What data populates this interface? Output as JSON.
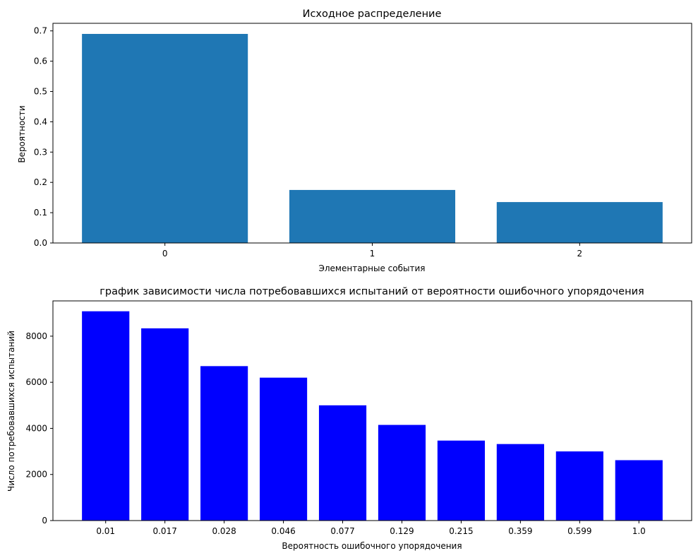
{
  "chart_data": [
    {
      "type": "bar",
      "title": "Исходное распределение",
      "xlabel": "Элементарные события",
      "ylabel": "Вероятности",
      "categories": [
        "0",
        "1",
        "2"
      ],
      "values": [
        0.69,
        0.175,
        0.135
      ],
      "ylim": [
        0,
        0.725
      ],
      "yticks": [
        0.0,
        0.1,
        0.2,
        0.3,
        0.4,
        0.5,
        0.6,
        0.7
      ],
      "ytick_labels": [
        "0.0",
        "0.1",
        "0.2",
        "0.3",
        "0.4",
        "0.5",
        "0.6",
        "0.7"
      ],
      "bar_color": "#1f77b4",
      "grid": false
    },
    {
      "type": "bar",
      "title": "график зависимости числа потребовавшихся испытаний от вероятности ошибочного упорядочения",
      "xlabel": "Вероятность ошибочного упорядочения",
      "ylabel": "Число потребовавшихся испытаний",
      "categories": [
        "0.01",
        "0.017",
        "0.028",
        "0.046",
        "0.077",
        "0.129",
        "0.215",
        "0.359",
        "0.599",
        "1.0"
      ],
      "values": [
        9080,
        8340,
        6700,
        6200,
        5000,
        4150,
        3470,
        3320,
        3000,
        2620
      ],
      "ylim": [
        0,
        9530
      ],
      "yticks": [
        0,
        2000,
        4000,
        6000,
        8000
      ],
      "ytick_labels": [
        "0",
        "2000",
        "4000",
        "6000",
        "8000"
      ],
      "bar_color": "#0000ff",
      "grid": false
    }
  ]
}
